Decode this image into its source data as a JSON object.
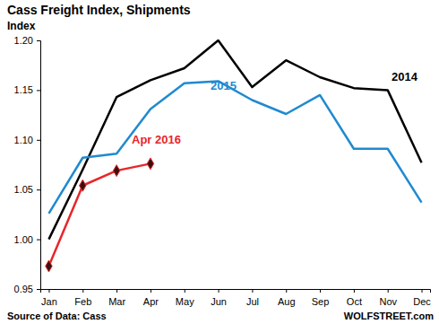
{
  "chart_data": {
    "type": "line",
    "title": "Cass Freight Index, Shipments",
    "y_label": "Index",
    "annotations": [
      "Source of Data: Cass",
      "WOLFSTREET.com"
    ],
    "categories": [
      "Jan",
      "Feb",
      "Mar",
      "Apr",
      "May",
      "Jun",
      "Jul",
      "Aug",
      "Sep",
      "Oct",
      "Nov",
      "Dec"
    ],
    "series": [
      {
        "name": "2014",
        "color": "#000000",
        "marker": "none",
        "values": [
          1.0,
          1.07,
          1.143,
          1.16,
          1.172,
          1.2,
          1.153,
          1.18,
          1.163,
          1.152,
          1.15,
          1.077
        ]
      },
      {
        "name": "2015",
        "color": "#1f8ad0",
        "marker": "none",
        "values": [
          1.026,
          1.082,
          1.086,
          1.131,
          1.157,
          1.159,
          1.14,
          1.126,
          1.145,
          1.091,
          1.091,
          1.037
        ]
      },
      {
        "name": "Apr 2016",
        "color": "#e8262a",
        "marker": "diamond",
        "values": [
          0.973,
          1.054,
          1.069,
          1.076,
          null,
          null,
          null,
          null,
          null,
          null,
          null,
          null
        ]
      }
    ],
    "ylim": [
      0.95,
      1.2
    ],
    "yticks": [
      {
        "value": 0.95,
        "label": "0.95"
      },
      {
        "value": 1.0,
        "label": "1.00"
      },
      {
        "value": 1.05,
        "label": "1.05"
      },
      {
        "value": 1.1,
        "label": "1.10"
      },
      {
        "value": 1.15,
        "label": "1.15"
      },
      {
        "value": 1.2,
        "label": "1.20"
      }
    ],
    "grid": false
  }
}
